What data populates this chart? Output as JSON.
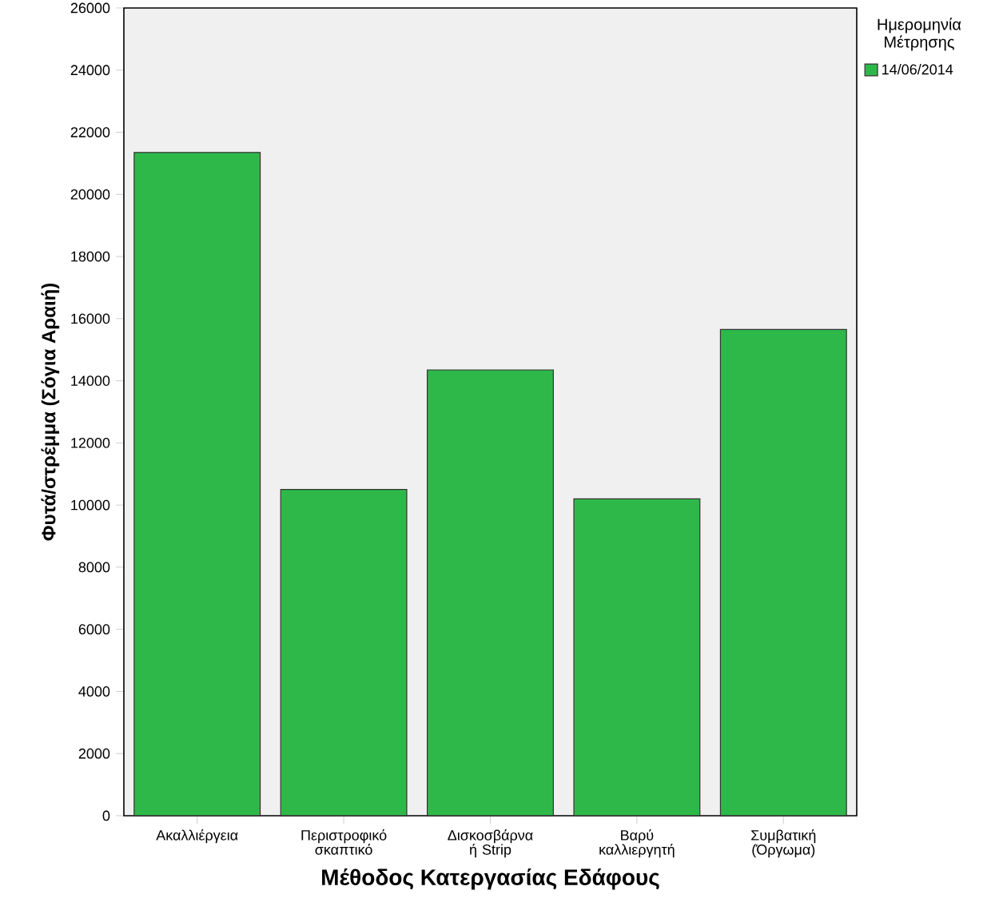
{
  "chart_data": {
    "type": "bar",
    "xlabel": "Μέθοδος Κατεργασίας Εδάφους",
    "ylabel": "Φυτά/στρέμμα (Σόγια Αραιή)",
    "legend_title": "Ημερομηνία Μέτρησης",
    "categories": [
      "Ακαλλιέργεια",
      "Περιστροφικό σκαπτικό",
      "Δισκοσβάρνα ή Strip",
      "Βαρύ καλλιεργητή",
      "Συμβατική (Όργωμα)"
    ],
    "series": [
      {
        "name": "14/06/2014",
        "color": "#2fb84a",
        "values": [
          21350,
          10500,
          14350,
          10200,
          15650
        ]
      }
    ],
    "ylim": [
      0,
      26000
    ],
    "yticks": [
      0,
      2000,
      4000,
      6000,
      8000,
      10000,
      12000,
      14000,
      16000,
      18000,
      20000,
      22000,
      24000,
      26000
    ],
    "legend": "top right",
    "grid": false
  }
}
